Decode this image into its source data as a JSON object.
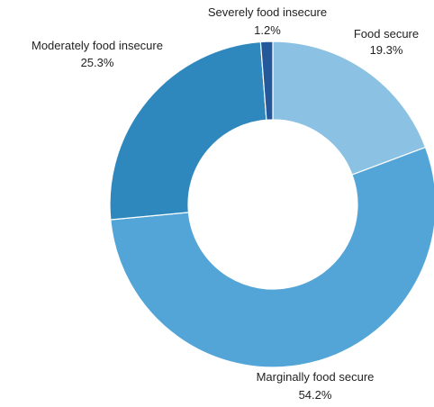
{
  "chart_data": {
    "type": "pie",
    "variant": "donut",
    "title": "",
    "slices": [
      {
        "label": "Food secure",
        "value": 19.3,
        "value_label": "19.3%",
        "color": "#8bc1e2"
      },
      {
        "label": "Marginally food secure",
        "value": 54.2,
        "value_label": "54.2%",
        "color": "#54a5d7"
      },
      {
        "label": "Moderately food insecure",
        "value": 25.3,
        "value_label": "25.3%",
        "color": "#2f88bd"
      },
      {
        "label": "Severely food insecure",
        "value": 1.2,
        "value_label": "1.2%",
        "color": "#23589a"
      }
    ],
    "start_angle": "12 o'clock",
    "direction": "clockwise",
    "legend": "none"
  }
}
